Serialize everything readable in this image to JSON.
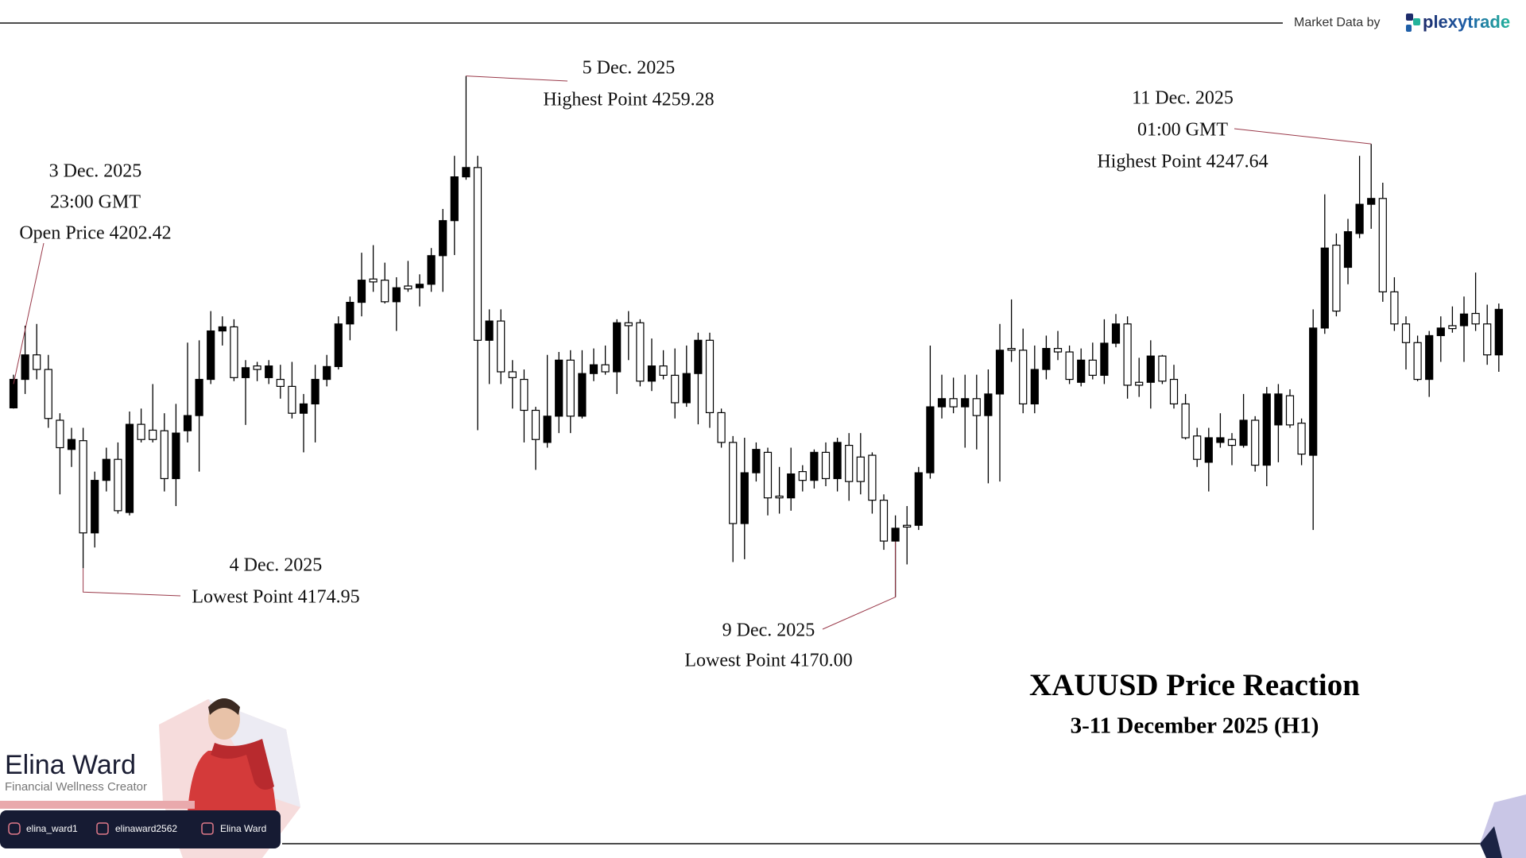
{
  "chart_data": {
    "type": "candlestick",
    "title": "XAUUSD Price Reaction",
    "subtitle": "3-11 December 2025 (H1)",
    "up_color": "#000000",
    "down_color": "#ffffff",
    "outline_color": "#000000",
    "ylim": [
      4125.3,
      4272.3
    ],
    "open": [
      4202.42,
      4207.3,
      4211.5,
      4209.0,
      4200.3,
      4195.3,
      4196.8,
      4181.0,
      4190.0,
      4193.6,
      4184.5,
      4199.6,
      4198.6,
      4198.5,
      4190.3,
      4198.5,
      4201.1,
      4207.3,
      4215.6,
      4216.3,
      4207.6,
      4209.6,
      4207.6,
      4207.3,
      4206.1,
      4201.5,
      4203.1,
      4207.3,
      4209.5,
      4216.8,
      4220.5,
      4224.5,
      4224.3,
      4220.6,
      4223.3,
      4223.0,
      4223.6,
      4228.5,
      4234.5,
      4242.0,
      4243.6,
      4214.0,
      4217.3,
      4208.6,
      4207.3,
      4202.0,
      4196.5,
      4201.0,
      4210.6,
      4201.0,
      4208.3,
      4209.8,
      4208.6,
      4217.0,
      4217.0,
      4207.0,
      4209.6,
      4208.0,
      4203.3,
      4208.3,
      4214.0,
      4201.6,
      4196.5,
      4182.6,
      4191.3,
      4194.8,
      4187.3,
      4187.0,
      4191.5,
      4190.0,
      4194.8,
      4190.3,
      4196.0,
      4194.0,
      4194.3,
      4186.6,
      4179.6,
      4182.3,
      4182.3,
      4191.3,
      4202.6,
      4204.0,
      4202.6,
      4204.0,
      4201.1,
      4204.8,
      4212.6,
      4212.3,
      4203.1,
      4209.0,
      4212.6,
      4212.0,
      4206.8,
      4210.6,
      4208.0,
      4213.5,
      4216.8,
      4206.8,
      4206.8,
      4211.3,
      4207.3,
      4203.1,
      4197.6,
      4193.1,
      4196.5,
      4197.0,
      4196.0,
      4200.3,
      4192.6,
      4199.5,
      4204.5,
      4199.8,
      4194.3,
      4216.1,
      4230.3,
      4226.5,
      4232.3,
      4237.3,
      4238.3,
      4222.3,
      4216.8,
      4213.6,
      4207.3,
      4214.8,
      4216.5,
      4216.5,
      4218.6,
      4216.8,
      4211.5
    ],
    "high": [
      4208.1,
      4216.5,
      4216.8,
      4211.5,
      4201.5,
      4199.0,
      4199.0,
      4191.5,
      4195.6,
      4196.5,
      4201.8,
      4202.3,
      4206.5,
      4201.5,
      4203.1,
      4213.6,
      4214.0,
      4219.0,
      4218.1,
      4217.6,
      4210.6,
      4210.3,
      4210.6,
      4209.8,
      4210.3,
      4204.8,
      4209.8,
      4211.5,
      4218.1,
      4221.5,
      4229.0,
      4230.3,
      4227.3,
      4224.8,
      4227.6,
      4225.3,
      4229.8,
      4236.5,
      4245.6,
      4259.28,
      4245.6,
      4219.3,
      4219.3,
      4210.6,
      4209.0,
      4202.6,
      4211.5,
      4212.0,
      4212.3,
      4212.3,
      4212.6,
      4213.1,
      4217.6,
      4219.0,
      4217.6,
      4214.3,
      4212.3,
      4212.6,
      4213.1,
      4215.3,
      4215.3,
      4202.3,
      4197.6,
      4197.3,
      4196.5,
      4195.6,
      4192.3,
      4195.6,
      4192.6,
      4195.3,
      4196.5,
      4197.3,
      4198.1,
      4198.1,
      4194.8,
      4187.6,
      4184.0,
      4185.6,
      4192.3,
      4213.1,
      4208.1,
      4207.6,
      4208.1,
      4208.1,
      4209.0,
      4216.8,
      4221.0,
      4216.0,
      4213.1,
      4214.8,
      4215.6,
      4213.1,
      4212.6,
      4213.6,
      4217.6,
      4218.5,
      4218.1,
      4211.0,
      4214.0,
      4211.5,
      4209.8,
      4204.8,
      4199.0,
      4199.0,
      4201.5,
      4198.1,
      4204.8,
      4201.0,
      4206.0,
      4206.5,
      4205.6,
      4200.6,
      4219.3,
      4239.0,
      4232.3,
      4234.8,
      4245.6,
      4247.64,
      4241.0,
      4224.8,
      4218.1,
      4214.8,
      4215.6,
      4218.1,
      4219.8,
      4221.5,
      4225.6,
      4220.1,
      4220.3
    ],
    "low": [
      4202.3,
      4204.8,
      4207.3,
      4199.0,
      4187.6,
      4192.3,
      4174.95,
      4178.5,
      4188.1,
      4184.3,
      4184.0,
      4196.5,
      4196.5,
      4188.1,
      4185.6,
      4196.5,
      4191.5,
      4206.5,
      4213.1,
      4207.0,
      4199.5,
      4207.0,
      4206.5,
      4204.0,
      4200.6,
      4194.8,
      4196.5,
      4206.1,
      4209.0,
      4214.0,
      4218.1,
      4222.3,
      4220.3,
      4215.6,
      4222.3,
      4219.8,
      4222.3,
      4222.3,
      4228.6,
      4241.5,
      4198.6,
      4206.5,
      4206.5,
      4202.3,
      4196.5,
      4191.8,
      4195.6,
      4198.1,
      4198.1,
      4200.6,
      4207.0,
      4208.1,
      4204.8,
      4210.6,
      4206.1,
      4205.3,
      4207.3,
      4200.6,
      4202.6,
      4199.6,
      4199.0,
      4195.6,
      4176.0,
      4176.5,
      4189.8,
      4184.0,
      4184.3,
      4184.8,
      4188.1,
      4188.6,
      4189.0,
      4188.1,
      4186.5,
      4187.6,
      4184.3,
      4178.1,
      4170.0,
      4175.6,
      4181.5,
      4190.3,
      4200.6,
      4201.5,
      4195.6,
      4195.3,
      4189.5,
      4189.8,
      4210.3,
      4201.5,
      4201.5,
      4207.3,
      4210.6,
      4206.5,
      4206.1,
      4207.3,
      4206.5,
      4212.8,
      4204.0,
      4204.3,
      4202.3,
      4206.5,
      4202.3,
      4197.0,
      4192.3,
      4188.1,
      4195.6,
      4192.6,
      4195.6,
      4191.5,
      4189.0,
      4193.1,
      4199.0,
      4192.6,
      4181.5,
      4215.1,
      4218.1,
      4223.6,
      4231.5,
      4233.1,
      4220.6,
      4215.6,
      4209.0,
      4207.0,
      4204.3,
      4210.3,
      4215.3,
      4210.3,
      4215.6,
      4209.8,
      4208.6
    ],
    "close": [
      4207.3,
      4211.5,
      4209.0,
      4200.6,
      4195.6,
      4197.0,
      4181.0,
      4190.0,
      4193.6,
      4184.8,
      4199.6,
      4197.0,
      4197.0,
      4190.3,
      4198.1,
      4201.1,
      4207.3,
      4215.6,
      4216.3,
      4207.6,
      4209.3,
      4209.0,
      4209.6,
      4206.1,
      4201.5,
      4203.1,
      4207.3,
      4209.5,
      4216.8,
      4220.5,
      4224.3,
      4224.0,
      4220.6,
      4223.0,
      4222.8,
      4223.6,
      4228.5,
      4234.5,
      4242.0,
      4243.6,
      4214.0,
      4217.3,
      4208.6,
      4207.6,
      4202.0,
      4197.0,
      4201.0,
      4210.6,
      4201.0,
      4208.3,
      4209.8,
      4208.6,
      4217.0,
      4216.5,
      4207.0,
      4209.6,
      4208.0,
      4203.3,
      4208.3,
      4214.0,
      4201.6,
      4196.5,
      4182.6,
      4191.3,
      4195.3,
      4187.0,
      4187.0,
      4191.1,
      4190.0,
      4194.8,
      4190.3,
      4196.5,
      4189.8,
      4189.8,
      4186.6,
      4179.6,
      4181.8,
      4182.0,
      4191.3,
      4202.6,
      4204.0,
      4202.6,
      4204.0,
      4201.1,
      4204.8,
      4212.3,
      4212.3,
      4203.1,
      4209.0,
      4212.6,
      4212.0,
      4207.3,
      4210.6,
      4208.0,
      4213.5,
      4216.8,
      4206.3,
      4206.3,
      4211.3,
      4207.0,
      4203.1,
      4197.3,
      4193.6,
      4197.3,
      4197.3,
      4196.0,
      4200.3,
      4192.6,
      4204.8,
      4204.8,
      4199.5,
      4194.5,
      4216.1,
      4229.8,
      4219.0,
      4232.6,
      4237.3,
      4238.3,
      4222.3,
      4216.8,
      4213.6,
      4207.3,
      4214.8,
      4216.1,
      4216.0,
      4218.5,
      4216.8,
      4211.5,
      4219.3
    ],
    "annotations": [
      [
        "3 Dec. 2025",
        "23:00 GMT",
        "Open Price 4202.42"
      ],
      [
        "4 Dec. 2025",
        "Lowest Point 4174.95"
      ],
      [
        "5 Dec. 2025",
        "Highest Point 4259.28"
      ],
      [
        "9 Dec. 2025",
        "Lowest Point 4170.00"
      ],
      [
        "11 Dec. 2025",
        "01:00 GMT",
        "Highest Point 4247.64"
      ]
    ]
  },
  "header": {
    "credit": "Market Data by",
    "brand": "plexytrade"
  },
  "creator": {
    "name": "Elina Ward",
    "role": "Financial Wellness Creator",
    "socials": [
      "elina_ward1",
      "elinaward2562",
      "Elina Ward"
    ]
  }
}
